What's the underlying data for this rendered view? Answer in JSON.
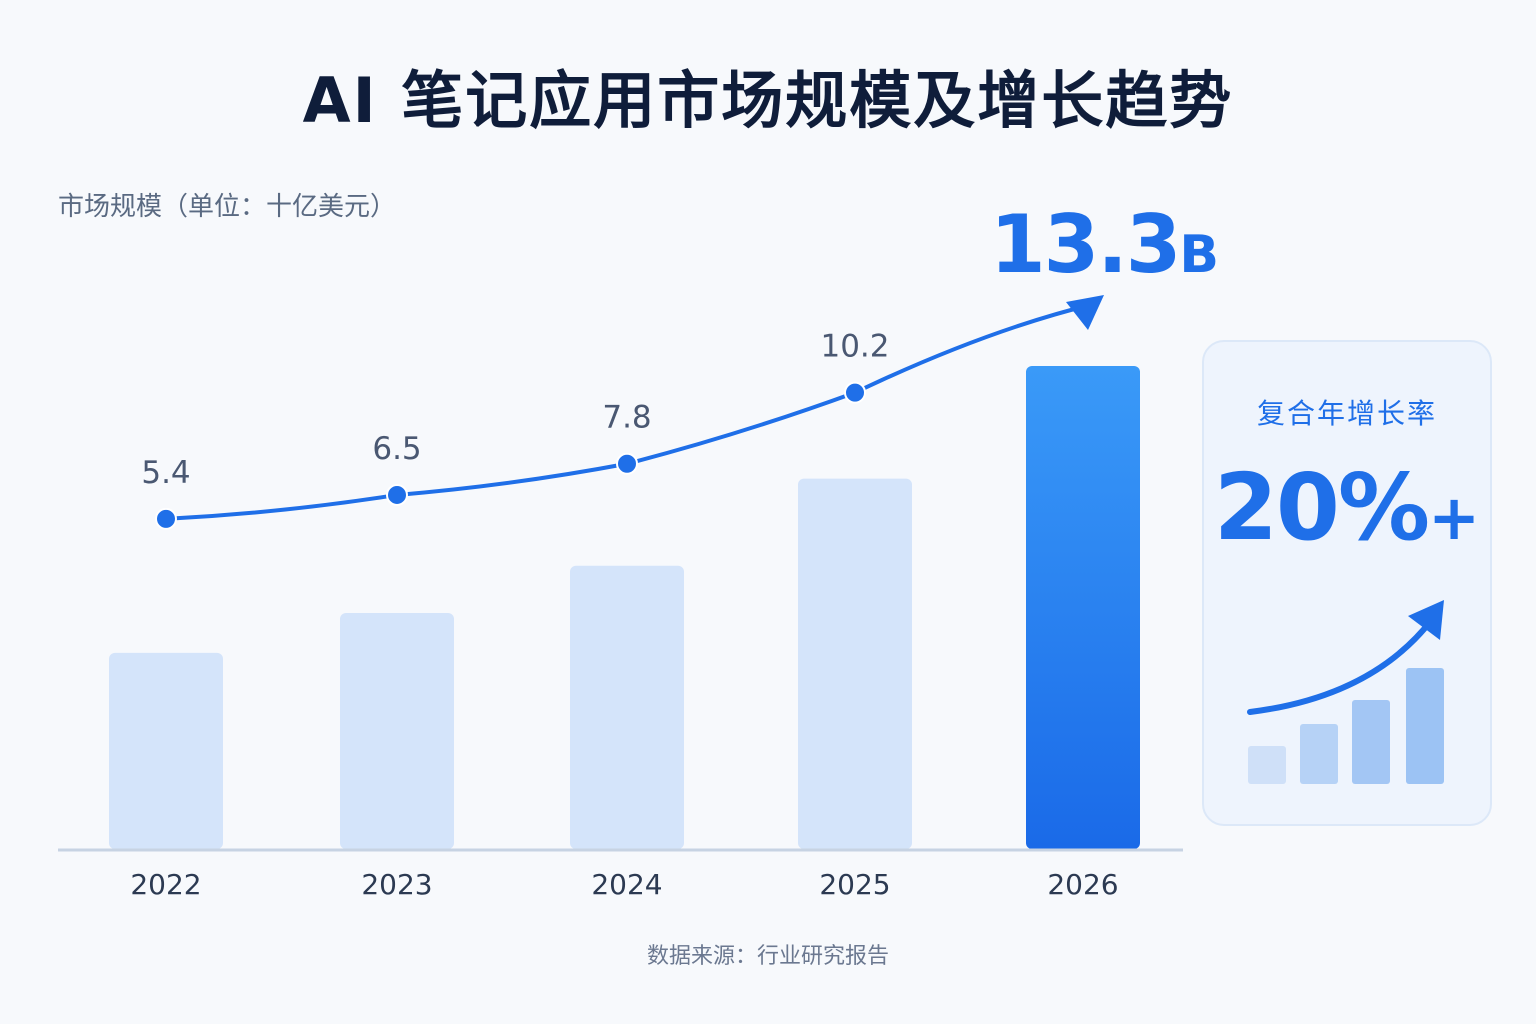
{
  "title": "AI 笔记应用市场规模及增长趋势",
  "unit_label": "市场规模（单位：十亿美元）",
  "highlight": {
    "value": "13.3",
    "unit": "B"
  },
  "cagr_card": {
    "title": "复合年增长率",
    "value": "20%",
    "suffix": "+"
  },
  "source": "数据来源：行业研究报告",
  "colors": {
    "accent": "#1f6fe8",
    "bar_light": "#d4e4fa",
    "bar_highlight_top": "#3a9af8",
    "bar_highlight_bottom": "#1a6ae8",
    "axis": "#c7d3e3"
  },
  "chart_data": {
    "type": "bar",
    "categories": [
      "2022",
      "2023",
      "2024",
      "2025",
      "2026"
    ],
    "series": [
      {
        "values": [
          5.4,
          6.5,
          7.8,
          10.2,
          13.3
        ]
      }
    ],
    "data_labels": [
      "5.4",
      "6.5",
      "7.8",
      "10.2",
      ""
    ],
    "highlight_index": 4,
    "trend_line": true,
    "ylabel": "市场规模（单位：十亿美元）",
    "ylim": [
      0,
      13.3
    ],
    "grid": false
  }
}
